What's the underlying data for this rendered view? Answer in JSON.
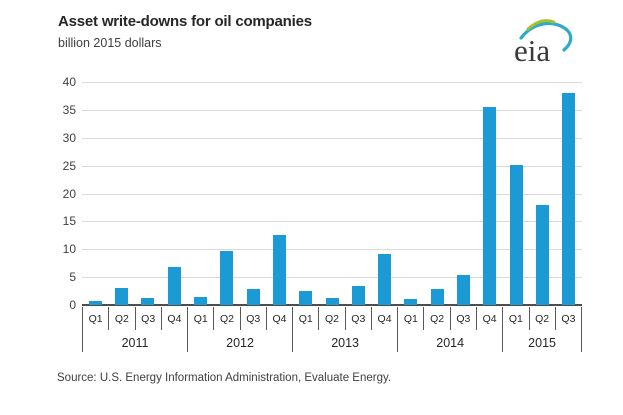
{
  "header": {
    "title": "Asset write-downs for oil companies",
    "subtitle": "billion 2015 dollars",
    "logo_text": "eia"
  },
  "source_note": "Source:  U.S. Energy Information Administration, Evaluate Energy.",
  "colors": {
    "bar": "#1c9ad6",
    "gridline": "#d9d9d9",
    "axis": "#4d4d4d",
    "text": "#404040",
    "logo_green": "#a2c42a",
    "logo_blue": "#2fa8cc"
  },
  "chart_data": {
    "type": "bar",
    "title": "Asset write-downs for oil companies",
    "xlabel": "",
    "ylabel": "billion 2015 dollars",
    "ylim": [
      0,
      40
    ],
    "ytick_step": 5,
    "yticks": [
      0,
      5,
      10,
      15,
      20,
      25,
      30,
      35,
      40
    ],
    "grid": true,
    "legend": "none",
    "categories": [
      "2011 Q1",
      "2011 Q2",
      "2011 Q3",
      "2011 Q4",
      "2012 Q1",
      "2012 Q2",
      "2012 Q3",
      "2012 Q4",
      "2013 Q1",
      "2013 Q2",
      "2013 Q3",
      "2013 Q4",
      "2014 Q1",
      "2014 Q2",
      "2014 Q3",
      "2014 Q4",
      "2015 Q1",
      "2015 Q2",
      "2015 Q3"
    ],
    "values": [
      0.8,
      3.1,
      1.2,
      6.9,
      1.4,
      9.6,
      2.9,
      12.5,
      2.5,
      1.2,
      3.4,
      9.1,
      1.1,
      2.8,
      5.3,
      35.5,
      25.1,
      18.0,
      38.1
    ],
    "years": [
      {
        "label": "2011",
        "quarters": [
          "Q1",
          "Q2",
          "Q3",
          "Q4"
        ]
      },
      {
        "label": "2012",
        "quarters": [
          "Q1",
          "Q2",
          "Q3",
          "Q4"
        ]
      },
      {
        "label": "2013",
        "quarters": [
          "Q1",
          "Q2",
          "Q3",
          "Q4"
        ]
      },
      {
        "label": "2014",
        "quarters": [
          "Q1",
          "Q2",
          "Q3",
          "Q4"
        ]
      },
      {
        "label": "2015",
        "quarters": [
          "Q1",
          "Q2",
          "Q3"
        ]
      }
    ]
  }
}
